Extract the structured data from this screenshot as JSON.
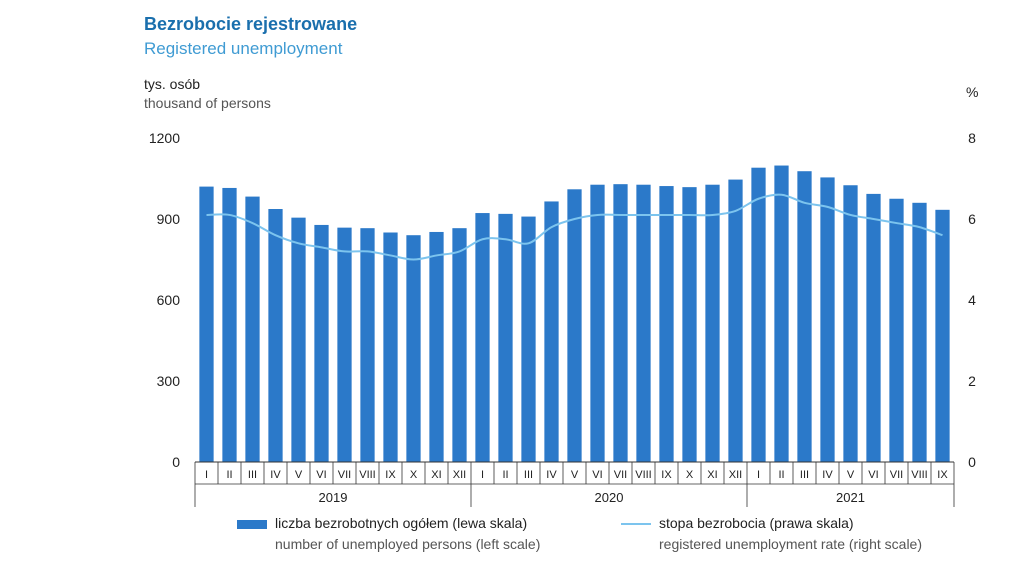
{
  "header": {
    "title": "Bezrobocie rejestrowane",
    "subtitle": "Registered unemployment",
    "left_unit_pl": "tys. osób",
    "left_unit_en": "thousand of persons",
    "right_unit": "%"
  },
  "legend": {
    "bars_pl": "liczba bezrobotnych ogółem (lewa skala)",
    "bars_en": "number of unemployed persons (left scale)",
    "line_pl": "stopa bezrobocia (prawa skala)",
    "line_en": "registered unemployment rate (right scale)"
  },
  "colors": {
    "bar": "#2b79c9",
    "line": "#7cc4ee",
    "title": "#1a6fad",
    "subtitle": "#3f9bd3"
  },
  "chart_data": {
    "type": "bar",
    "title": "Bezrobocie rejestrowane",
    "subtitle": "Registered unemployment",
    "categories": [
      "I",
      "II",
      "III",
      "IV",
      "V",
      "VI",
      "VII",
      "VIII",
      "IX",
      "X",
      "XI",
      "XII",
      "I",
      "II",
      "III",
      "IV",
      "V",
      "VI",
      "VII",
      "VIII",
      "IX",
      "X",
      "XI",
      "XII",
      "I",
      "II",
      "III",
      "IV",
      "V",
      "VI",
      "VII",
      "VIII",
      "IX"
    ],
    "years": [
      {
        "label": "2019",
        "start": 0,
        "end": 11
      },
      {
        "label": "2020",
        "start": 12,
        "end": 23
      },
      {
        "label": "2021",
        "start": 24,
        "end": 32
      }
    ],
    "series": [
      {
        "name": "liczba bezrobotnych ogółem (lewa skala)",
        "type": "bar",
        "axis": "left",
        "values": [
          1020,
          1015,
          983,
          937,
          905,
          878,
          868,
          866,
          850,
          840,
          852,
          866,
          922,
          919,
          909,
          965,
          1010,
          1027,
          1029,
          1027,
          1022,
          1018,
          1027,
          1046,
          1090,
          1098,
          1077,
          1054,
          1025,
          993,
          975,
          960,
          934
        ]
      },
      {
        "name": "stopa bezrobocia (prawa skala)",
        "type": "line",
        "axis": "right",
        "values": [
          6.1,
          6.1,
          5.9,
          5.6,
          5.4,
          5.3,
          5.2,
          5.2,
          5.1,
          5.0,
          5.1,
          5.2,
          5.5,
          5.5,
          5.4,
          5.8,
          6.0,
          6.1,
          6.1,
          6.1,
          6.1,
          6.1,
          6.1,
          6.2,
          6.5,
          6.6,
          6.4,
          6.3,
          6.1,
          6.0,
          5.9,
          5.8,
          5.6
        ]
      }
    ],
    "y_left": {
      "min": 0,
      "max": 1200,
      "ticks": [
        0,
        300,
        600,
        900,
        1200
      ]
    },
    "y_right": {
      "min": 0,
      "max": 8,
      "ticks": [
        0,
        2,
        4,
        6,
        8
      ]
    },
    "grid": false,
    "legend_position": "bottom"
  }
}
